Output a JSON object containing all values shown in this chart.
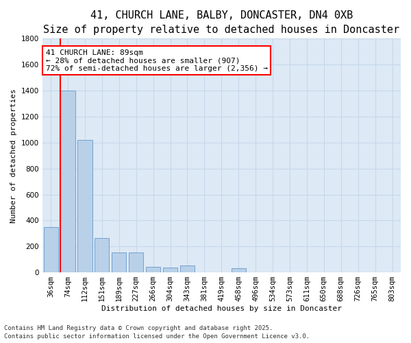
{
  "title_line1": "41, CHURCH LANE, BALBY, DONCASTER, DN4 0XB",
  "title_line2": "Size of property relative to detached houses in Doncaster",
  "xlabel": "Distribution of detached houses by size in Doncaster",
  "ylabel": "Number of detached properties",
  "footnote1": "Contains HM Land Registry data © Crown copyright and database right 2025.",
  "footnote2": "Contains public sector information licensed under the Open Government Licence v3.0.",
  "categories": [
    "36sqm",
    "74sqm",
    "112sqm",
    "151sqm",
    "189sqm",
    "227sqm",
    "266sqm",
    "304sqm",
    "343sqm",
    "381sqm",
    "419sqm",
    "458sqm",
    "496sqm",
    "534sqm",
    "573sqm",
    "611sqm",
    "650sqm",
    "688sqm",
    "726sqm",
    "765sqm",
    "803sqm"
  ],
  "values": [
    350,
    1400,
    1020,
    265,
    155,
    155,
    45,
    40,
    55,
    0,
    0,
    30,
    0,
    0,
    0,
    0,
    0,
    0,
    0,
    0,
    0
  ],
  "bar_color": "#b8d0e8",
  "bar_edge_color": "#6699cc",
  "grid_color": "#c8d8ea",
  "bg_color": "#dde9f5",
  "vline_color": "red",
  "annotation_text": "41 CHURCH LANE: 89sqm\n← 28% of detached houses are smaller (907)\n72% of semi-detached houses are larger (2,356) →",
  "annotation_box_color": "red",
  "ylim": [
    0,
    1800
  ],
  "yticks": [
    0,
    200,
    400,
    600,
    800,
    1000,
    1200,
    1400,
    1600,
    1800
  ],
  "title_fontsize": 11,
  "subtitle_fontsize": 10,
  "axis_label_fontsize": 8,
  "tick_fontsize": 7.5,
  "annotation_fontsize": 8,
  "footnote_fontsize": 6.5
}
